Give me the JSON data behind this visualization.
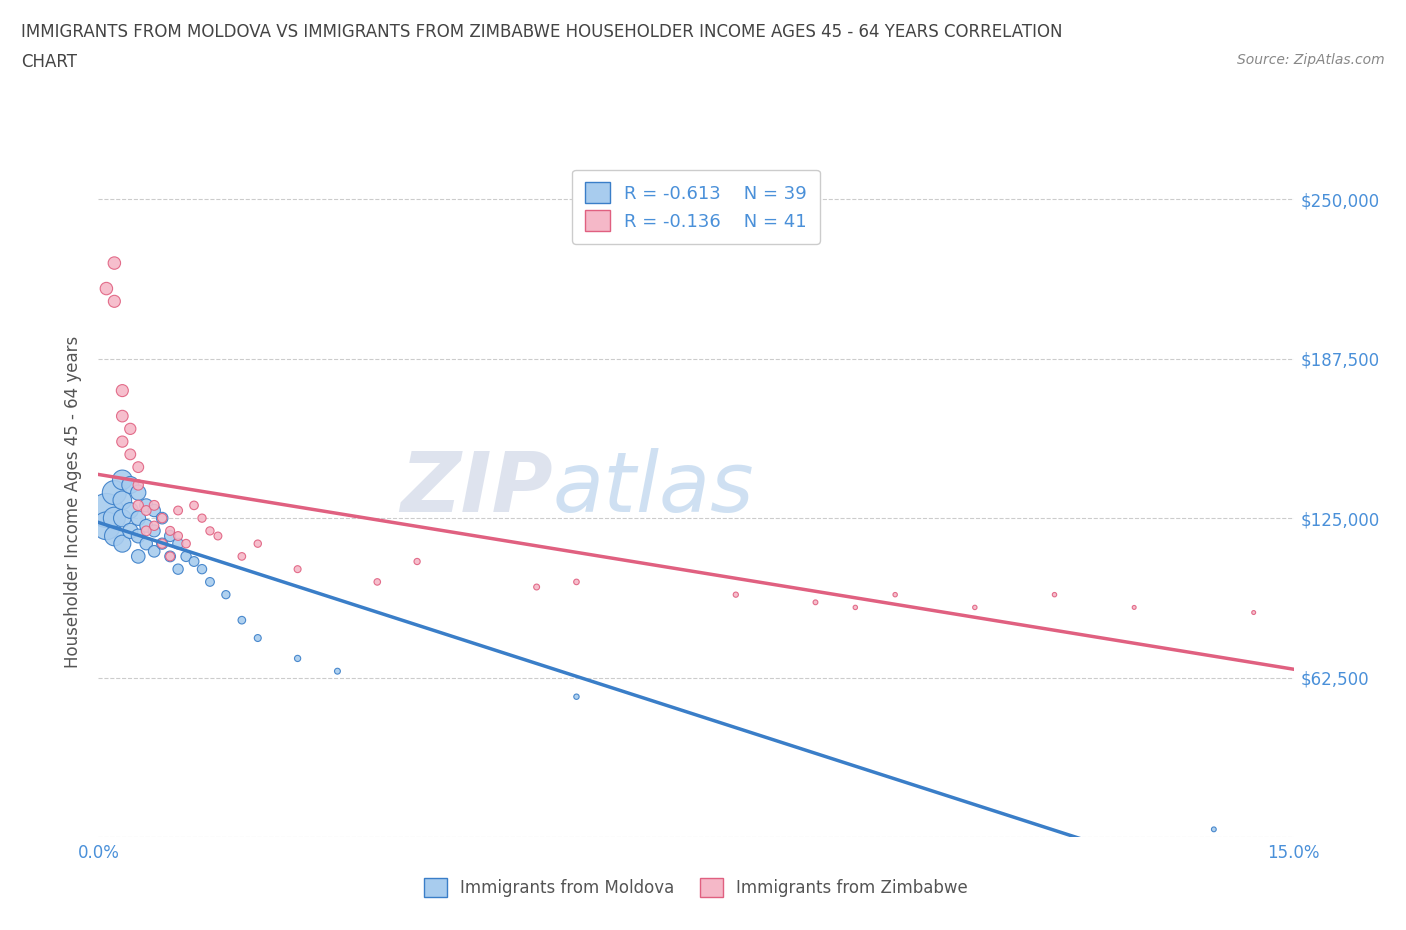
{
  "title_line1": "IMMIGRANTS FROM MOLDOVA VS IMMIGRANTS FROM ZIMBABWE HOUSEHOLDER INCOME AGES 45 - 64 YEARS CORRELATION",
  "title_line2": "CHART",
  "source": "Source: ZipAtlas.com",
  "ylabel": "Householder Income Ages 45 - 64 years",
  "xlim": [
    0.0,
    0.15
  ],
  "ylim": [
    0,
    262500
  ],
  "yticks": [
    0,
    62500,
    125000,
    187500,
    250000
  ],
  "ytick_labels": [
    "",
    "$62,500",
    "$125,000",
    "$187,500",
    "$250,000"
  ],
  "xticks": [
    0.0,
    0.025,
    0.05,
    0.075,
    0.1,
    0.125,
    0.15
  ],
  "xtick_labels": [
    "0.0%",
    "",
    "",
    "",
    "",
    "",
    "15.0%"
  ],
  "color_moldova": "#a8ccee",
  "color_zimbabwe": "#f5b8c8",
  "line_color_moldova": "#3a7ec8",
  "line_color_zimbabwe": "#e06080",
  "R_moldova": -0.613,
  "N_moldova": 39,
  "R_zimbabwe": -0.136,
  "N_zimbabwe": 41,
  "moldova_x": [
    0.001,
    0.001,
    0.002,
    0.002,
    0.002,
    0.003,
    0.003,
    0.003,
    0.003,
    0.004,
    0.004,
    0.004,
    0.005,
    0.005,
    0.005,
    0.005,
    0.006,
    0.006,
    0.006,
    0.007,
    0.007,
    0.007,
    0.008,
    0.008,
    0.009,
    0.009,
    0.01,
    0.01,
    0.011,
    0.012,
    0.013,
    0.014,
    0.016,
    0.018,
    0.02,
    0.025,
    0.03,
    0.06,
    0.14
  ],
  "moldova_y": [
    128000,
    122000,
    135000,
    125000,
    118000,
    140000,
    132000,
    125000,
    115000,
    138000,
    128000,
    120000,
    135000,
    125000,
    118000,
    110000,
    130000,
    122000,
    115000,
    128000,
    120000,
    112000,
    125000,
    115000,
    118000,
    110000,
    115000,
    105000,
    110000,
    108000,
    105000,
    100000,
    95000,
    85000,
    78000,
    70000,
    65000,
    55000,
    3000
  ],
  "moldova_size": [
    600,
    400,
    300,
    250,
    200,
    200,
    180,
    160,
    150,
    150,
    130,
    120,
    120,
    110,
    100,
    95,
    90,
    85,
    80,
    80,
    75,
    70,
    70,
    65,
    65,
    60,
    60,
    55,
    55,
    50,
    45,
    40,
    35,
    30,
    25,
    20,
    18,
    15,
    12
  ],
  "zimbabwe_x": [
    0.001,
    0.002,
    0.002,
    0.003,
    0.003,
    0.003,
    0.004,
    0.004,
    0.005,
    0.005,
    0.005,
    0.006,
    0.006,
    0.007,
    0.007,
    0.008,
    0.008,
    0.009,
    0.009,
    0.01,
    0.01,
    0.011,
    0.012,
    0.013,
    0.014,
    0.015,
    0.018,
    0.02,
    0.025,
    0.035,
    0.04,
    0.055,
    0.06,
    0.08,
    0.09,
    0.095,
    0.1,
    0.11,
    0.12,
    0.13,
    0.145
  ],
  "zimbabwe_y": [
    215000,
    225000,
    210000,
    175000,
    165000,
    155000,
    160000,
    150000,
    145000,
    138000,
    130000,
    128000,
    120000,
    130000,
    122000,
    125000,
    115000,
    120000,
    110000,
    128000,
    118000,
    115000,
    130000,
    125000,
    120000,
    118000,
    110000,
    115000,
    105000,
    100000,
    108000,
    98000,
    100000,
    95000,
    92000,
    90000,
    95000,
    90000,
    95000,
    90000,
    88000
  ],
  "zimbabwe_size": [
    80,
    80,
    75,
    75,
    70,
    65,
    65,
    60,
    60,
    55,
    55,
    50,
    50,
    50,
    45,
    45,
    45,
    42,
    42,
    40,
    40,
    38,
    38,
    35,
    35,
    32,
    30,
    28,
    25,
    22,
    20,
    18,
    16,
    14,
    12,
    10,
    10,
    10,
    10,
    8,
    8
  ],
  "watermark_part1": "ZIP",
  "watermark_part2": "atlas",
  "background_color": "#ffffff",
  "grid_color": "#cccccc",
  "tick_color": "#4a90d9",
  "title_color": "#444444",
  "legend_r_color": "#4a90d9",
  "source_color": "#888888"
}
